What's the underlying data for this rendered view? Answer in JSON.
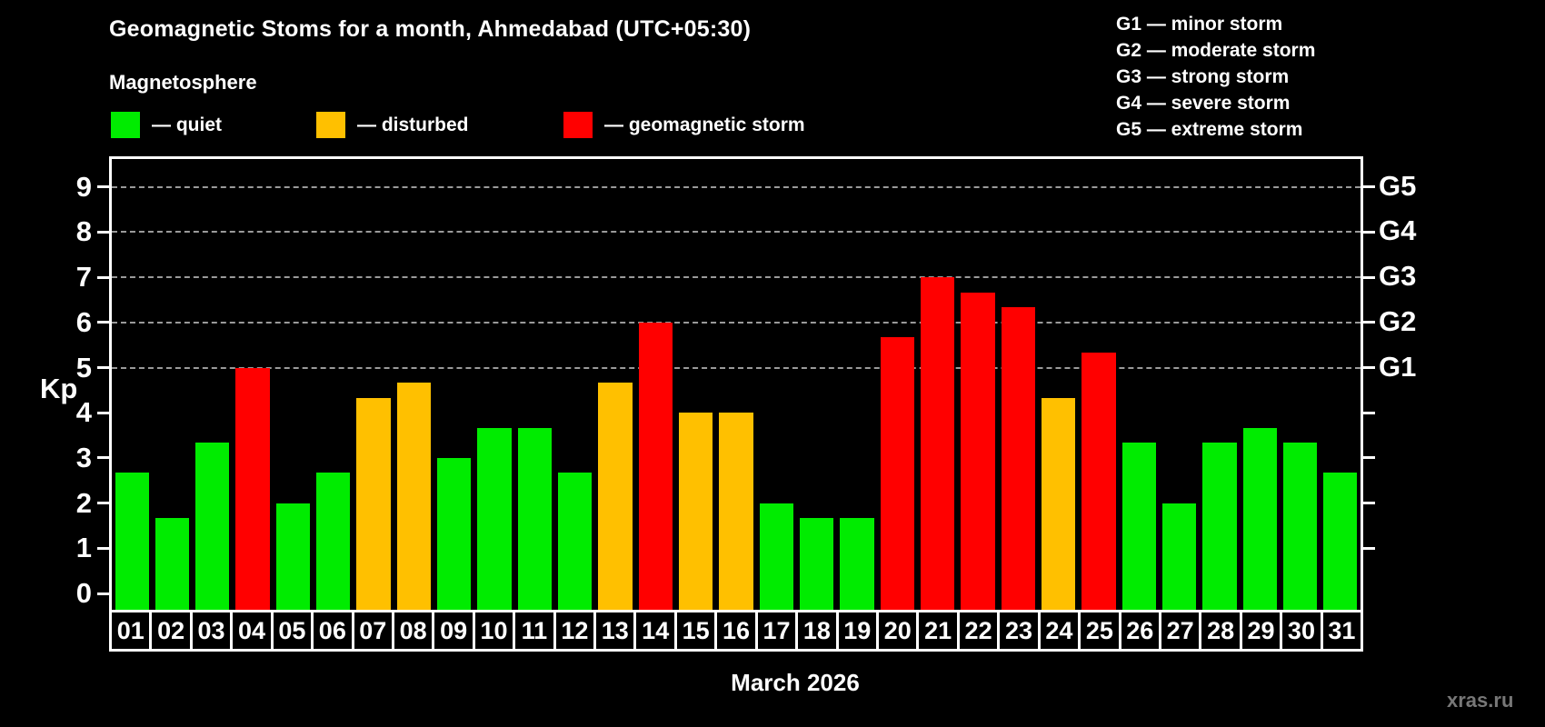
{
  "header": {
    "title": "Geomagnetic Stoms for a month, Ahmedabad (UTC+05:30)",
    "subtitle": "Magnetosphere",
    "legend": [
      {
        "status": "quiet",
        "label": "— quiet"
      },
      {
        "status": "disturbed",
        "label": "— disturbed"
      },
      {
        "status": "storm",
        "label": "— geomagnetic storm"
      }
    ],
    "g_scale": [
      "G1 — minor storm",
      "G2 — moderate storm",
      "G3 — strong storm",
      "G4 — severe storm",
      "G5 — extreme storm"
    ]
  },
  "status_colors": {
    "quiet": "#00ec00",
    "disturbed": "#ffc000",
    "storm": "#ff0000"
  },
  "chart_data": {
    "type": "bar",
    "title": "Geomagnetic Stoms for a month, Ahmedabad (UTC+05:30)",
    "ylabel": "Kp",
    "xlabel": "March 2026",
    "categories": [
      "01",
      "02",
      "03",
      "04",
      "05",
      "06",
      "07",
      "08",
      "09",
      "10",
      "11",
      "12",
      "13",
      "14",
      "15",
      "16",
      "17",
      "18",
      "19",
      "20",
      "21",
      "22",
      "23",
      "24",
      "25",
      "26",
      "27",
      "28",
      "29",
      "30",
      "31"
    ],
    "values": [
      2.67,
      1.67,
      3.33,
      5.0,
      2.0,
      2.67,
      4.33,
      4.67,
      3.0,
      3.67,
      3.67,
      2.67,
      4.67,
      6.0,
      4.0,
      4.0,
      2.0,
      1.67,
      1.67,
      5.67,
      7.0,
      6.67,
      6.33,
      4.33,
      5.33,
      3.33,
      2.0,
      3.33,
      3.67,
      3.33,
      2.67
    ],
    "statuses": [
      "quiet",
      "quiet",
      "quiet",
      "storm",
      "quiet",
      "quiet",
      "disturbed",
      "disturbed",
      "quiet",
      "quiet",
      "quiet",
      "quiet",
      "disturbed",
      "storm",
      "disturbed",
      "disturbed",
      "quiet",
      "quiet",
      "quiet",
      "storm",
      "storm",
      "storm",
      "storm",
      "disturbed",
      "storm",
      "quiet",
      "quiet",
      "quiet",
      "quiet",
      "quiet",
      "quiet"
    ],
    "ylim": [
      -0.36,
      9.62
    ],
    "grid": "dashed horizontal at Kp 5-9 only",
    "gridlines": [
      5,
      6,
      7,
      8,
      9
    ],
    "left_ticks": [
      0,
      1,
      2,
      3,
      4,
      5,
      6,
      7,
      8,
      9
    ],
    "right_ticks": [
      1,
      2,
      3,
      4,
      5,
      6,
      7,
      8,
      9
    ],
    "g_levels": [
      {
        "kp": 5,
        "label": "G1"
      },
      {
        "kp": 6,
        "label": "G2"
      },
      {
        "kp": 7,
        "label": "G3"
      },
      {
        "kp": 8,
        "label": "G4"
      },
      {
        "kp": 9,
        "label": "G5"
      }
    ]
  },
  "footer": {
    "month_label": "March 2026",
    "watermark": "xras.ru"
  }
}
